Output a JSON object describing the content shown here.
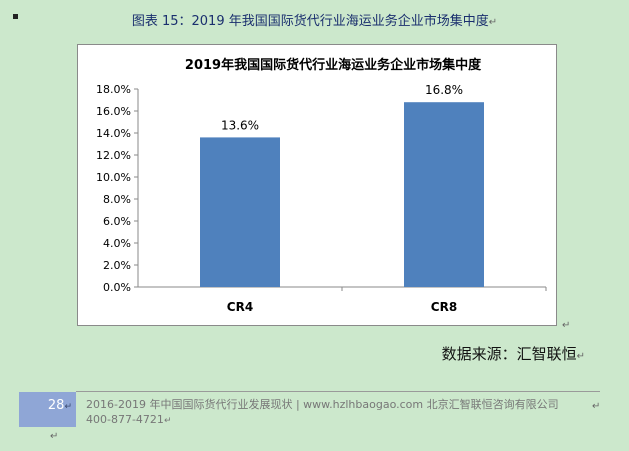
{
  "caption": "图表 15：2019 年我国国际货代行业海运业务企业市场集中度",
  "source_text": "数据来源：汇智联恒",
  "footer": {
    "page_number": "28",
    "line1": "2016-2019 年中国国际货代行业发展现状 | www.hzlhbaogao.com 北京汇智联恒咨询有限公司",
    "line2": "400-877-4721"
  },
  "paragraph_mark": "↵",
  "colors": {
    "bar": "#4f81bd",
    "background": "#cce8cc",
    "caption": "#1a2f6e",
    "page_box": "#8fa6d6"
  },
  "chart_data": {
    "type": "bar",
    "title": "2019年我国国际货代行业海运业务企业市场集中度",
    "categories": [
      "CR4",
      "CR8"
    ],
    "values": [
      13.6,
      16.8
    ],
    "data_labels": [
      "13.6%",
      "16.8%"
    ],
    "y_ticks": [
      "0.0%",
      "2.0%",
      "4.0%",
      "6.0%",
      "8.0%",
      "10.0%",
      "12.0%",
      "14.0%",
      "16.0%",
      "18.0%"
    ],
    "ylim": [
      0,
      18
    ],
    "xlabel": "",
    "ylabel": "",
    "grid": false,
    "legend": "none"
  }
}
